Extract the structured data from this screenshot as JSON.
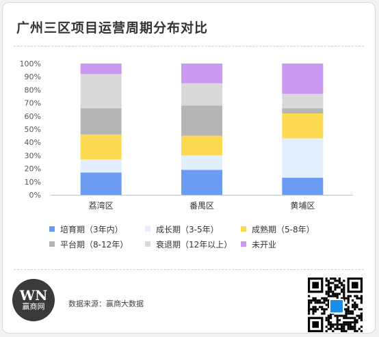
{
  "header": {
    "title": "广州三区项目运营周期分布对比"
  },
  "footer": {
    "logo_mark": "WN",
    "logo_name": "赢商网",
    "source": "数据来源：赢商大数据"
  },
  "colors": {
    "axis": "#bfbfbf",
    "tick_text": "#555555"
  },
  "chart_data": {
    "type": "bar",
    "stacked": true,
    "percent": true,
    "title": "广州三区项目运营周期分布对比",
    "categories": [
      "荔湾区",
      "番禺区",
      "黄埔区"
    ],
    "ylim": [
      0,
      100
    ],
    "yticks": [
      "0%",
      "10%",
      "20%",
      "30%",
      "40%",
      "50%",
      "60%",
      "70%",
      "80%",
      "90%",
      "100%"
    ],
    "grid": false,
    "legend_position": "bottom",
    "series": [
      {
        "name": "培育期（3年内）",
        "color": "#6c9cf2",
        "values": [
          17,
          19,
          13
        ]
      },
      {
        "name": "成长期（3-5年）",
        "color": "#e3efff",
        "values": [
          10,
          11,
          30
        ]
      },
      {
        "name": "成熟期（5-8年）",
        "color": "#fdda52",
        "values": [
          19,
          15,
          19
        ]
      },
      {
        "name": "平台期（8-12年）",
        "color": "#b5b5b5",
        "values": [
          20,
          23,
          4
        ]
      },
      {
        "name": "衰退期（12年以上）",
        "color": "#d9d9d9",
        "values": [
          26,
          17,
          11
        ]
      },
      {
        "name": "未开业",
        "color": "#c998f0",
        "values": [
          8,
          15,
          23
        ]
      }
    ]
  }
}
